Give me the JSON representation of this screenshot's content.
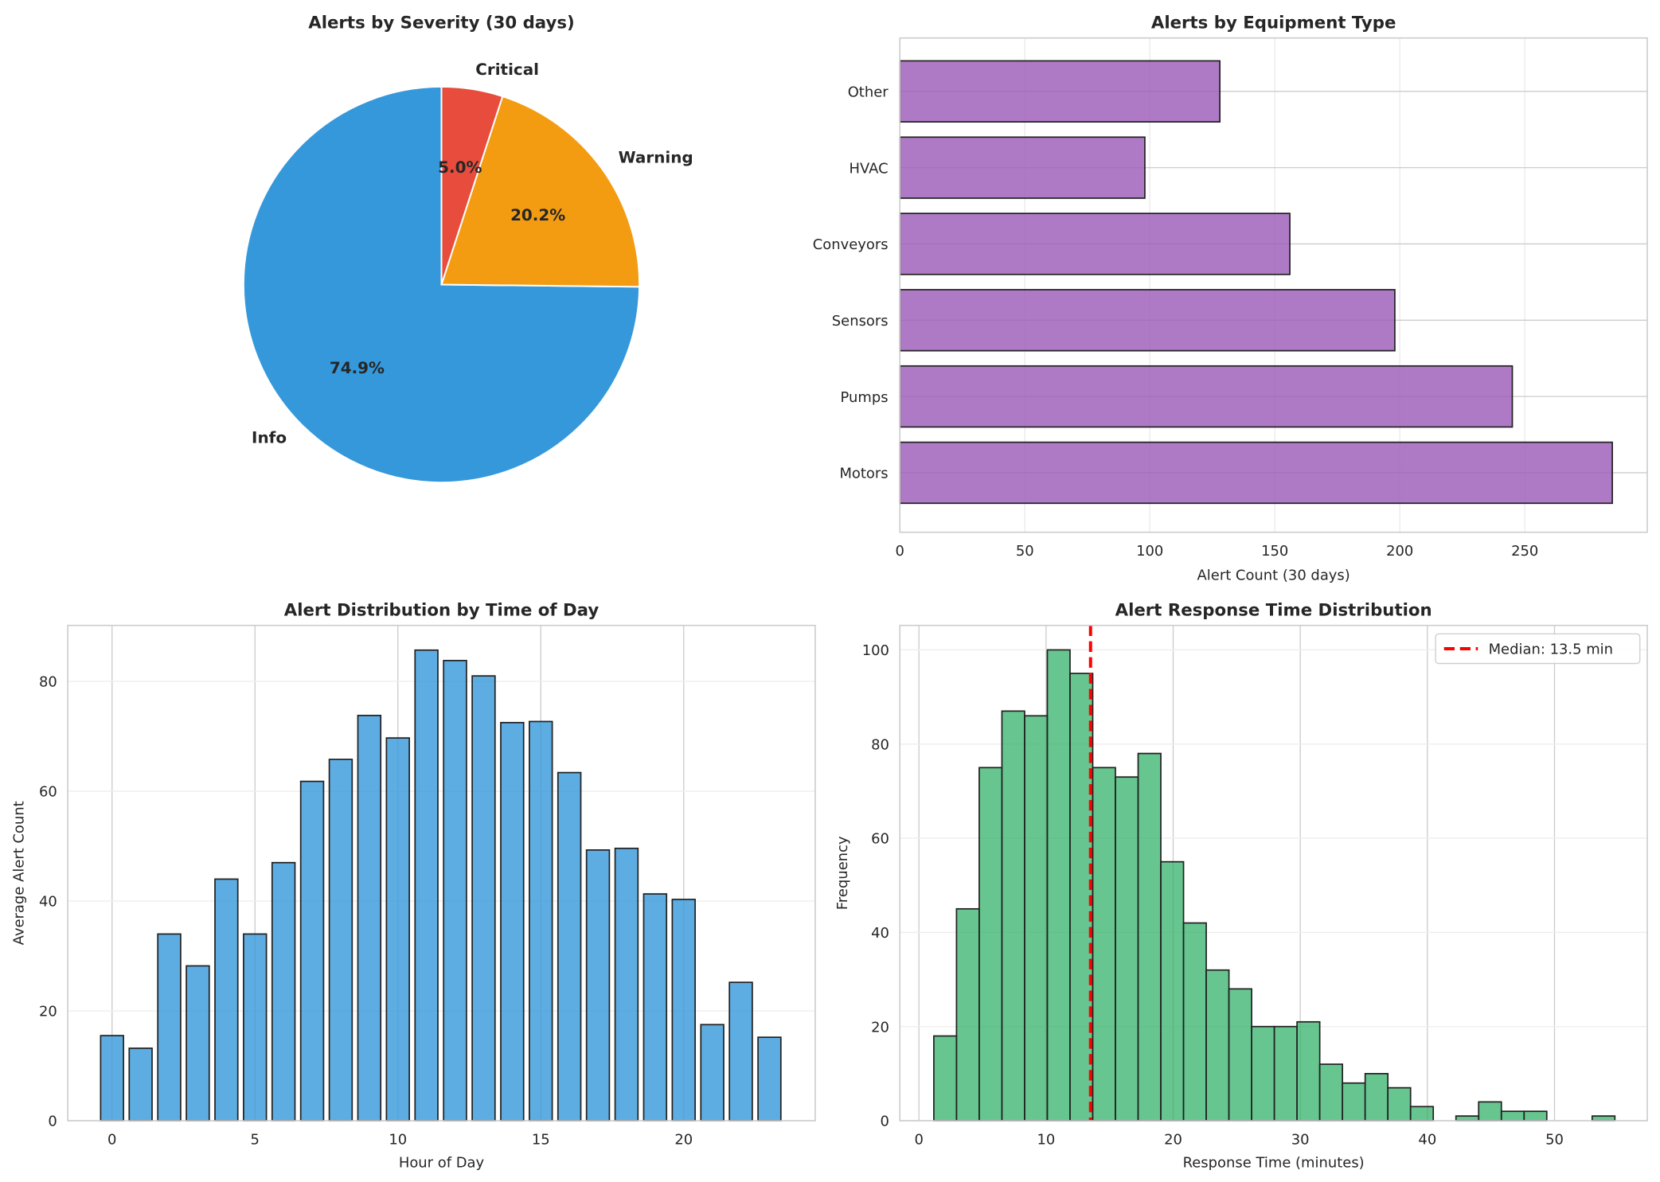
{
  "chart_data": [
    {
      "type": "pie",
      "title": "Alerts by Severity (30 days)",
      "labels": [
        "Info",
        "Warning",
        "Critical"
      ],
      "values": [
        74.9,
        20.2,
        5.0
      ],
      "pct_labels": [
        "74.9%",
        "20.2%",
        "5.0%"
      ],
      "colors": [
        "#3498db",
        "#f39c12",
        "#e74c3c"
      ],
      "start_angle": 90,
      "direction": "counterclockwise"
    },
    {
      "type": "bar",
      "orientation": "horizontal",
      "title": "Alerts by Equipment Type",
      "categories": [
        "Motors",
        "Pumps",
        "Sensors",
        "Conveyors",
        "HVAC",
        "Other"
      ],
      "values": [
        285,
        245,
        198,
        156,
        98,
        128
      ],
      "xlabel": "Alert Count (30 days)",
      "ylabel": "",
      "xlim": [
        0,
        299
      ],
      "xticks": [
        0,
        50,
        100,
        150,
        200,
        250
      ],
      "color": "#9b59b6",
      "grid": true
    },
    {
      "type": "bar",
      "title": "Alert Distribution by Time of Day",
      "x": [
        0,
        1,
        2,
        3,
        4,
        5,
        6,
        7,
        8,
        9,
        10,
        11,
        12,
        13,
        14,
        15,
        16,
        17,
        18,
        19,
        20,
        21,
        22,
        23
      ],
      "values": [
        15.5,
        13.2,
        34.0,
        28.2,
        44.0,
        34.0,
        47.0,
        61.8,
        65.8,
        73.8,
        69.7,
        85.7,
        83.8,
        81.0,
        72.5,
        72.7,
        63.4,
        49.3,
        49.6,
        41.3,
        40.3,
        17.5,
        25.2,
        15.2
      ],
      "xlabel": "Hour of Day",
      "ylabel": "Average Alert Count",
      "xlim": [
        -1.55,
        24.6
      ],
      "ylim": [
        0,
        90.2
      ],
      "xticks": [
        0,
        5,
        10,
        15,
        20
      ],
      "yticks": [
        0,
        20,
        40,
        60,
        80
      ],
      "color": "#3498db",
      "grid": true
    },
    {
      "type": "histogram",
      "title": "Alert Response Time Distribution",
      "bin_start": 1.17,
      "bin_width": 1.786,
      "counts": [
        18,
        45,
        75,
        87,
        86,
        100,
        95,
        75,
        73,
        78,
        55,
        42,
        32,
        28,
        20,
        20,
        21,
        12,
        8,
        10,
        7,
        3,
        0,
        1,
        4,
        2,
        2,
        0,
        0,
        1
      ],
      "xlabel": "Response Time (minutes)",
      "ylabel": "Frequency",
      "xlim": [
        -1.5,
        57.3
      ],
      "ylim": [
        0,
        105.2
      ],
      "xticks": [
        0,
        10,
        20,
        30,
        40,
        50
      ],
      "yticks": [
        0,
        20,
        40,
        60,
        80,
        100
      ],
      "color": "#27ae60",
      "median": 13.5,
      "median_color": "#ff0000",
      "legend": "Median: 13.5 min",
      "legend_position": "top-right",
      "grid": true
    }
  ]
}
